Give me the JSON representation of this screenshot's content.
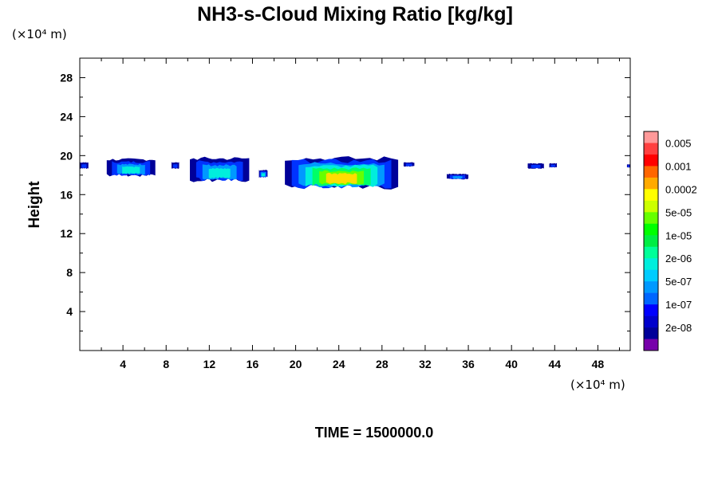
{
  "chart_data": {
    "type": "heatmap",
    "title": "NH3-s-Cloud Mixing Ratio [kg/kg]",
    "ylabel": "Height",
    "x_unit": "(×10⁴ m)",
    "y_unit": "(×10⁴ m)",
    "xlim": [
      0,
      51
    ],
    "ylim": [
      0,
      30
    ],
    "x_ticks": [
      4,
      8,
      12,
      16,
      20,
      24,
      28,
      32,
      36,
      40,
      44,
      48
    ],
    "y_ticks": [
      4,
      8,
      12,
      16,
      20,
      24,
      28
    ],
    "footer": "TIME = 1500000.0",
    "colorbar": {
      "labels": [
        "0.005",
        "0.001",
        "0.0002",
        "5e-05",
        "1e-05",
        "2e-06",
        "5e-07",
        "1e-07",
        "2e-08"
      ],
      "colors_top_to_bottom": [
        "#ff9999",
        "#ff4040",
        "#ff0000",
        "#ff6600",
        "#ffaa00",
        "#ffff00",
        "#ccff00",
        "#66ff00",
        "#00ff00",
        "#00ee44",
        "#00ff99",
        "#00eedd",
        "#00ccff",
        "#0099ff",
        "#0066ff",
        "#0000ff",
        "#0000cc",
        "#000099",
        "#7700aa"
      ]
    },
    "cloud_regions": [
      {
        "x": [
          0,
          0.8
        ],
        "y": [
          18.7,
          19.3
        ],
        "max_level": "1e-07"
      },
      {
        "x": [
          2.5,
          7.0
        ],
        "y": [
          18.0,
          19.6
        ],
        "max_level": "2e-06"
      },
      {
        "x": [
          8.5,
          9.2
        ],
        "y": [
          18.7,
          19.3
        ],
        "max_level": "1e-07"
      },
      {
        "x": [
          10.2,
          15.7
        ],
        "y": [
          17.5,
          19.7
        ],
        "max_level": "2e-06"
      },
      {
        "x": [
          16.6,
          17.4
        ],
        "y": [
          17.8,
          18.5
        ],
        "max_level": "2e-06"
      },
      {
        "x": [
          19.0,
          29.5
        ],
        "y": [
          16.8,
          19.7
        ],
        "max_level": "0.0002"
      },
      {
        "x": [
          30.0,
          31.0
        ],
        "y": [
          18.9,
          19.3
        ],
        "max_level": "1e-07"
      },
      {
        "x": [
          34.0,
          36.0
        ],
        "y": [
          17.6,
          18.1
        ],
        "max_level": "5e-07"
      },
      {
        "x": [
          41.5,
          43.0
        ],
        "y": [
          18.7,
          19.2
        ],
        "max_level": "1e-07"
      },
      {
        "x": [
          43.5,
          44.2
        ],
        "y": [
          18.8,
          19.2
        ],
        "max_level": "1e-07"
      },
      {
        "x": [
          50.7,
          51.0
        ],
        "y": [
          18.8,
          19.1
        ],
        "max_level": "1e-07"
      }
    ]
  }
}
